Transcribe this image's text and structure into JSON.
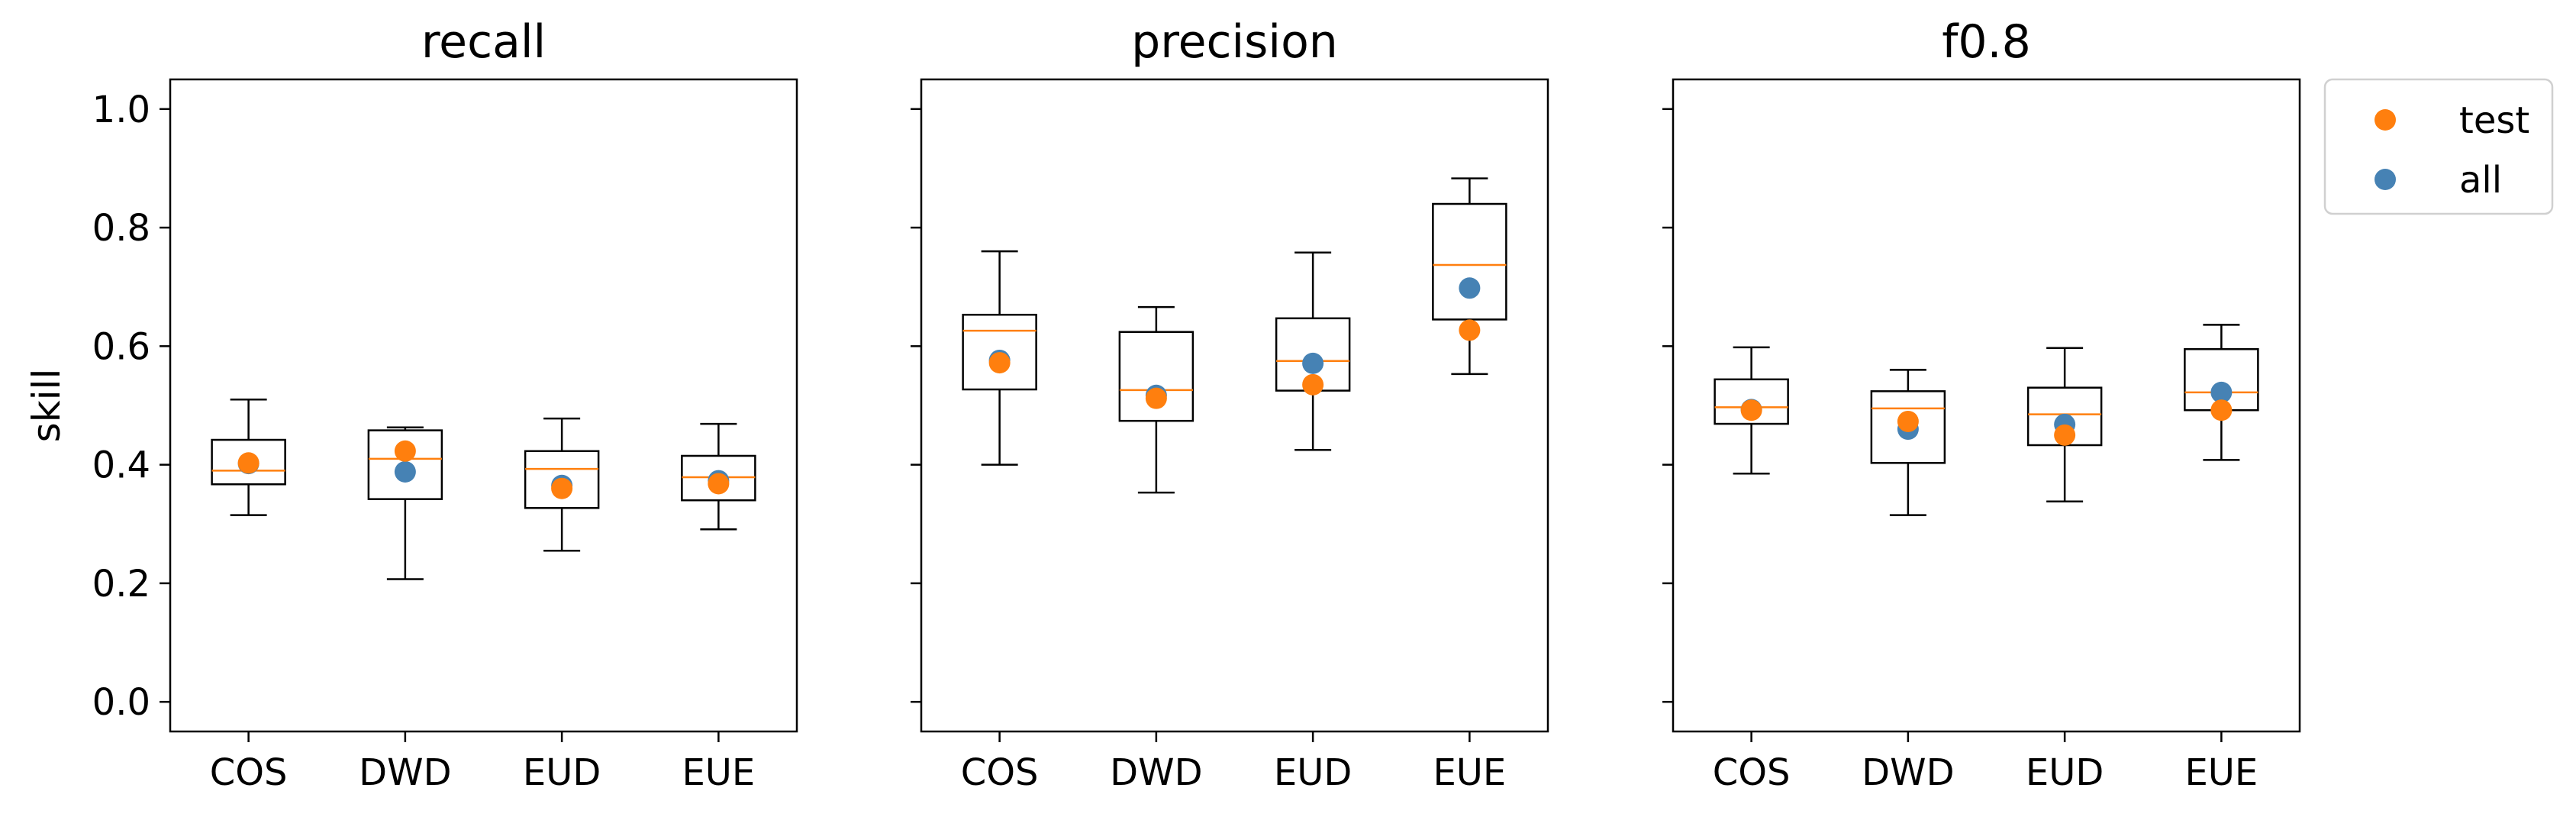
{
  "chart_data": {
    "type": "box",
    "ylabel": "skill",
    "ylim": [
      -0.05,
      1.05
    ],
    "yticks": [
      0.0,
      0.2,
      0.4,
      0.6,
      0.8,
      1.0
    ],
    "yticklabels": [
      "0.0",
      "0.2",
      "0.4",
      "0.6",
      "0.8",
      "1.0"
    ],
    "categories": [
      "COS",
      "DWD",
      "EUD",
      "EUE"
    ],
    "legend": {
      "placement": "outside-top-right",
      "entries": [
        {
          "label": "test",
          "color": "#ff7f0e"
        },
        {
          "label": "all",
          "color": "#4682b4"
        }
      ]
    },
    "colors": {
      "box": "#000000",
      "median": "#ff7f0e",
      "test": "#ff7f0e",
      "all": "#4682b4"
    },
    "panels": [
      {
        "title": "recall",
        "boxes": [
          {
            "category": "COS",
            "whisker_low": 0.315,
            "q1": 0.367,
            "median": 0.39,
            "q3": 0.442,
            "whisker_high": 0.51
          },
          {
            "category": "DWD",
            "whisker_low": 0.207,
            "q1": 0.342,
            "median": 0.41,
            "q3": 0.458,
            "whisker_high": 0.463
          },
          {
            "category": "EUD",
            "whisker_low": 0.255,
            "q1": 0.327,
            "median": 0.393,
            "q3": 0.423,
            "whisker_high": 0.478
          },
          {
            "category": "EUE",
            "whisker_low": 0.291,
            "q1": 0.34,
            "median": 0.379,
            "q3": 0.415,
            "whisker_high": 0.469
          }
        ],
        "test": [
          0.403,
          0.423,
          0.36,
          0.368
        ],
        "all": [
          0.402,
          0.388,
          0.365,
          0.373
        ]
      },
      {
        "title": "precision",
        "boxes": [
          {
            "category": "COS",
            "whisker_low": 0.4,
            "q1": 0.527,
            "median": 0.626,
            "q3": 0.653,
            "whisker_high": 0.76
          },
          {
            "category": "DWD",
            "whisker_low": 0.353,
            "q1": 0.474,
            "median": 0.526,
            "q3": 0.624,
            "whisker_high": 0.666
          },
          {
            "category": "EUD",
            "whisker_low": 0.425,
            "q1": 0.525,
            "median": 0.575,
            "q3": 0.647,
            "whisker_high": 0.758
          },
          {
            "category": "EUE",
            "whisker_low": 0.553,
            "q1": 0.645,
            "median": 0.737,
            "q3": 0.84,
            "whisker_high": 0.883
          }
        ],
        "test": [
          0.572,
          0.512,
          0.535,
          0.627
        ],
        "all": [
          0.576,
          0.517,
          0.571,
          0.698
        ]
      },
      {
        "title": "f0.8",
        "boxes": [
          {
            "category": "COS",
            "whisker_low": 0.385,
            "q1": 0.469,
            "median": 0.497,
            "q3": 0.544,
            "whisker_high": 0.598
          },
          {
            "category": "DWD",
            "whisker_low": 0.315,
            "q1": 0.403,
            "median": 0.495,
            "q3": 0.524,
            "whisker_high": 0.56
          },
          {
            "category": "EUD",
            "whisker_low": 0.338,
            "q1": 0.433,
            "median": 0.485,
            "q3": 0.53,
            "whisker_high": 0.597
          },
          {
            "category": "EUE",
            "whisker_low": 0.408,
            "q1": 0.492,
            "median": 0.522,
            "q3": 0.595,
            "whisker_high": 0.636
          }
        ],
        "test": [
          0.492,
          0.473,
          0.45,
          0.492
        ],
        "all": [
          0.493,
          0.46,
          0.468,
          0.522
        ]
      }
    ]
  }
}
